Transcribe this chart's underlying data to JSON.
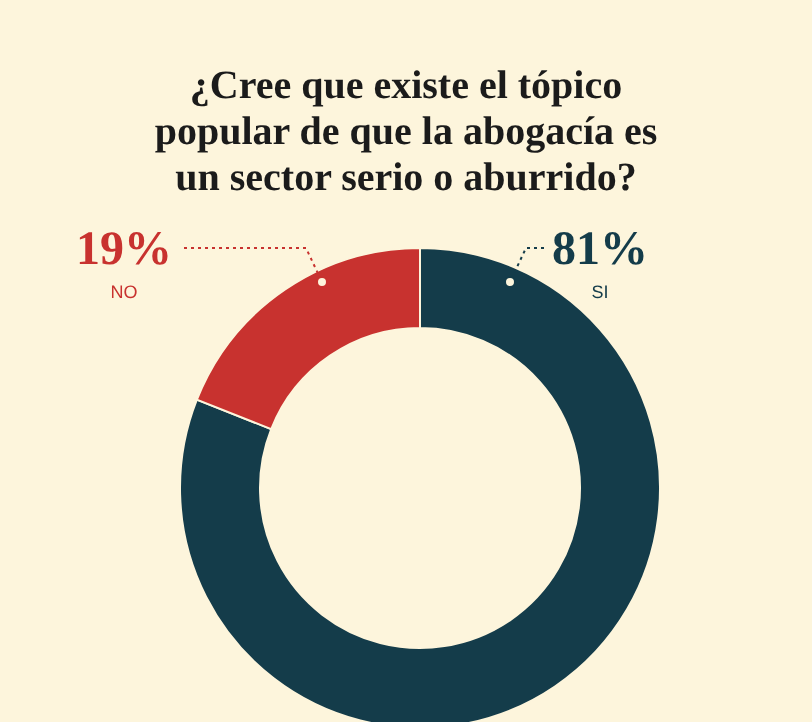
{
  "chart_data": {
    "type": "donut",
    "title": "¿Cree que existe el tópico popular de que la abogacía es un sector serio o aburrido?",
    "categories": [
      "SI",
      "NO"
    ],
    "values": [
      81,
      19
    ],
    "colors": [
      "#143c4a",
      "#c8322f"
    ],
    "value_labels": [
      "81%",
      "19%"
    ]
  }
}
